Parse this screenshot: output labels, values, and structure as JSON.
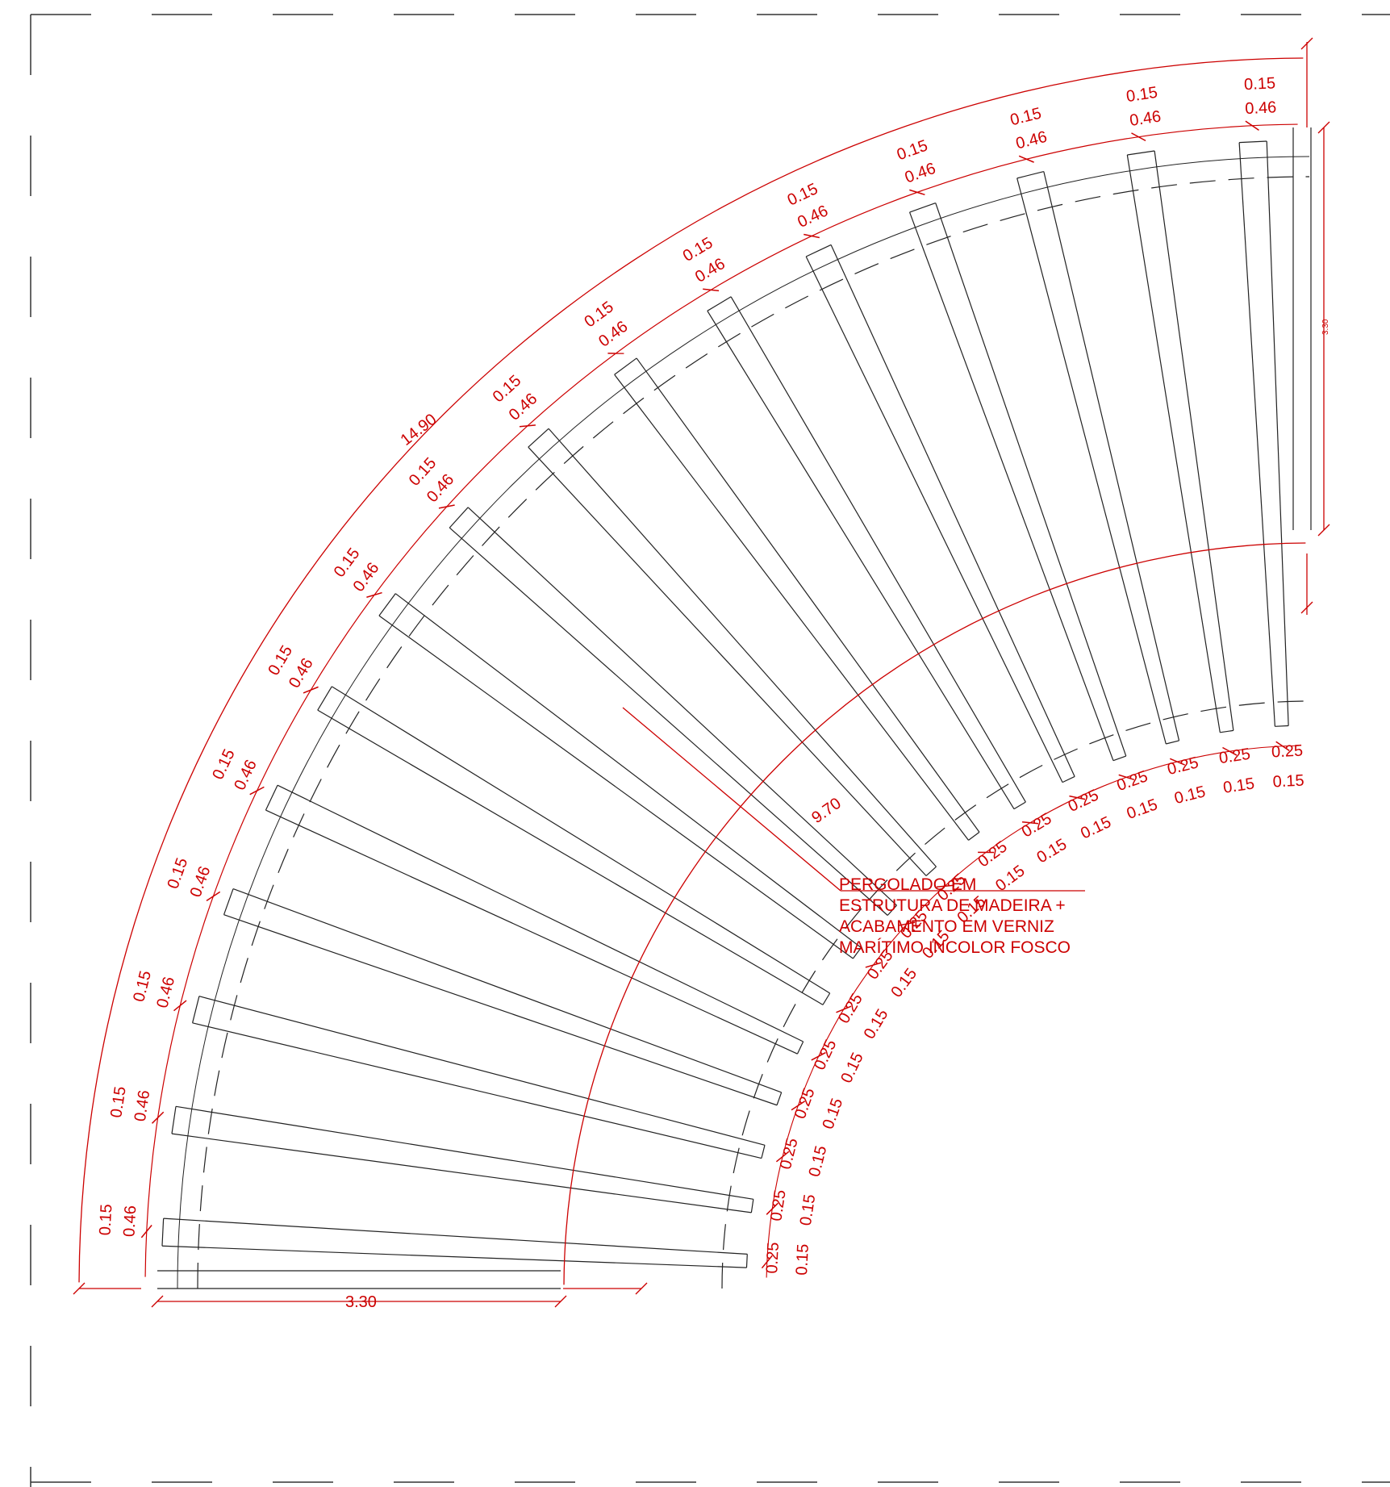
{
  "drawing": {
    "outer_arc_label": "14.90",
    "inner_arc_label": "9.70",
    "base_width_label": "3.30",
    "right_height_label": "3.30",
    "gap_label": "0.15",
    "beam_spacing_label": "0.46",
    "inner_spacing_label": "0.25",
    "note_lines": [
      "PERGOLADO EM",
      "ESTRUTURA DE MADEIRA +",
      "ACABAMENTO EM VERNIZ",
      "MARÍTIMO INCOLOR FOSCO"
    ]
  },
  "colors": {
    "dimension": "#cc0000",
    "structure": "#222222",
    "frame": "#333333"
  }
}
